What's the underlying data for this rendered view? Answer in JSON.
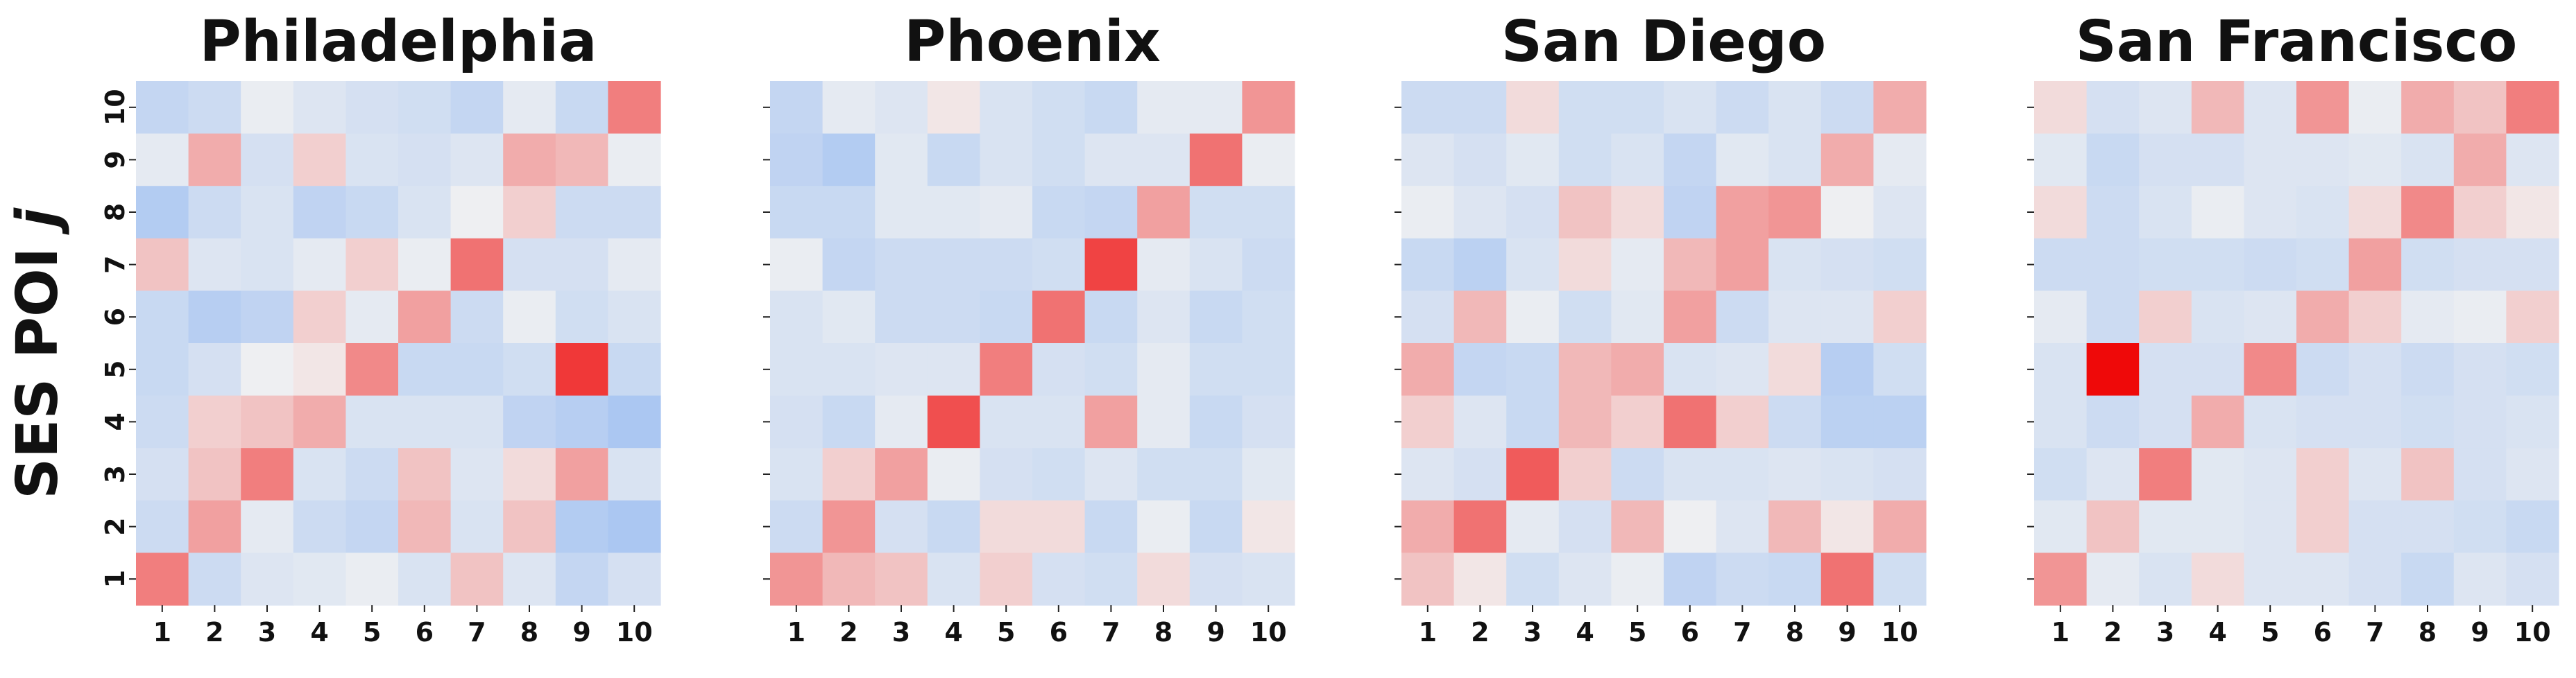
{
  "figure": {
    "ylabel": "SES POI ",
    "ylabel_var": "j"
  },
  "colors": {
    "low": "#9ebff2",
    "mid": "#f2f2f2",
    "high": "#ef0909"
  },
  "chart_data": [
    {
      "type": "heatmap",
      "title": "Philadelphia",
      "x": [
        1,
        2,
        3,
        4,
        5,
        6,
        7,
        8,
        9,
        10
      ],
      "y": [
        1,
        2,
        3,
        4,
        5,
        6,
        7,
        8,
        9,
        10
      ],
      "values_top_to_bottom": [
        [
          -0.55,
          -0.45,
          -0.1,
          -0.25,
          -0.35,
          -0.4,
          -0.55,
          -0.15,
          -0.5,
          0.5
        ],
        [
          -0.15,
          0.3,
          -0.35,
          0.15,
          -0.3,
          -0.35,
          -0.25,
          0.3,
          0.25,
          -0.1
        ],
        [
          -0.75,
          -0.45,
          -0.3,
          -0.6,
          -0.5,
          -0.3,
          -0.05,
          0.15,
          -0.45,
          -0.45
        ],
        [
          0.2,
          -0.25,
          -0.3,
          -0.15,
          0.15,
          -0.1,
          0.55,
          -0.35,
          -0.35,
          -0.15
        ],
        [
          -0.5,
          -0.7,
          -0.6,
          0.15,
          -0.15,
          0.35,
          -0.45,
          -0.1,
          -0.4,
          -0.3
        ],
        [
          -0.5,
          -0.35,
          -0.05,
          0.05,
          0.45,
          -0.5,
          -0.5,
          -0.4,
          0.8,
          -0.5
        ],
        [
          -0.45,
          0.15,
          0.2,
          0.3,
          -0.3,
          -0.3,
          -0.3,
          -0.6,
          -0.7,
          -0.85
        ],
        [
          -0.35,
          0.2,
          0.5,
          -0.3,
          -0.45,
          0.2,
          -0.25,
          0.1,
          0.35,
          -0.3
        ],
        [
          -0.45,
          0.35,
          -0.15,
          -0.45,
          -0.55,
          0.25,
          -0.3,
          0.2,
          -0.75,
          -0.85
        ],
        [
          0.5,
          -0.45,
          -0.25,
          -0.2,
          -0.1,
          -0.3,
          0.2,
          -0.25,
          -0.55,
          -0.35
        ]
      ]
    },
    {
      "type": "heatmap",
      "title": "Phoenix",
      "x": [
        1,
        2,
        3,
        4,
        5,
        6,
        7,
        8,
        9,
        10
      ],
      "y": [
        1,
        2,
        3,
        4,
        5,
        6,
        7,
        8,
        9,
        10
      ],
      "values_top_to_bottom": [
        [
          -0.55,
          -0.15,
          -0.25,
          0.05,
          -0.3,
          -0.4,
          -0.5,
          -0.15,
          -0.15,
          0.4
        ],
        [
          -0.6,
          -0.75,
          -0.2,
          -0.5,
          -0.3,
          -0.4,
          -0.25,
          -0.25,
          0.55,
          -0.1
        ],
        [
          -0.5,
          -0.5,
          -0.2,
          -0.2,
          -0.15,
          -0.5,
          -0.55,
          0.35,
          -0.4,
          -0.4
        ],
        [
          -0.1,
          -0.55,
          -0.45,
          -0.45,
          -0.45,
          -0.4,
          0.75,
          -0.15,
          -0.3,
          -0.45
        ],
        [
          -0.3,
          -0.2,
          -0.45,
          -0.45,
          -0.5,
          0.55,
          -0.5,
          -0.25,
          -0.5,
          -0.4
        ],
        [
          -0.3,
          -0.3,
          -0.25,
          -0.25,
          0.5,
          -0.35,
          -0.4,
          -0.15,
          -0.4,
          -0.4
        ],
        [
          -0.35,
          -0.5,
          -0.15,
          0.7,
          -0.3,
          -0.3,
          0.35,
          -0.15,
          -0.5,
          -0.35
        ],
        [
          -0.3,
          0.15,
          0.35,
          -0.1,
          -0.35,
          -0.4,
          -0.25,
          -0.4,
          -0.4,
          -0.2
        ],
        [
          -0.45,
          0.4,
          -0.35,
          -0.5,
          0.1,
          0.1,
          -0.5,
          -0.1,
          -0.5,
          0.05
        ],
        [
          0.4,
          0.25,
          0.2,
          -0.3,
          0.15,
          -0.35,
          -0.4,
          0.1,
          -0.35,
          -0.3
        ]
      ]
    },
    {
      "type": "heatmap",
      "title": "San Diego",
      "x": [
        1,
        2,
        3,
        4,
        5,
        6,
        7,
        8,
        9,
        10
      ],
      "y": [
        1,
        2,
        3,
        4,
        5,
        6,
        7,
        8,
        9,
        10
      ],
      "values_top_to_bottom": [
        [
          -0.45,
          -0.45,
          0.1,
          -0.4,
          -0.4,
          -0.3,
          -0.45,
          -0.3,
          -0.45,
          0.3
        ],
        [
          -0.25,
          -0.35,
          -0.2,
          -0.4,
          -0.3,
          -0.55,
          -0.2,
          -0.3,
          0.3,
          -0.15
        ],
        [
          -0.1,
          -0.25,
          -0.35,
          0.2,
          0.1,
          -0.6,
          0.35,
          0.4,
          -0.05,
          -0.25
        ],
        [
          -0.5,
          -0.65,
          -0.3,
          0.1,
          -0.15,
          0.25,
          0.35,
          -0.3,
          -0.35,
          -0.4
        ],
        [
          -0.35,
          0.25,
          -0.1,
          -0.4,
          -0.2,
          0.35,
          -0.45,
          -0.25,
          -0.25,
          0.15
        ],
        [
          0.3,
          -0.55,
          -0.5,
          0.25,
          0.3,
          -0.3,
          -0.25,
          0.1,
          -0.7,
          -0.4
        ],
        [
          0.15,
          -0.25,
          -0.5,
          0.25,
          0.15,
          0.55,
          0.15,
          -0.45,
          -0.65,
          -0.65
        ],
        [
          -0.25,
          -0.35,
          0.65,
          0.15,
          -0.45,
          -0.3,
          -0.3,
          -0.25,
          -0.3,
          -0.35
        ],
        [
          0.3,
          0.55,
          -0.15,
          -0.35,
          0.25,
          -0.05,
          -0.25,
          0.25,
          0.05,
          0.3
        ],
        [
          0.2,
          0.05,
          -0.4,
          -0.25,
          -0.1,
          -0.6,
          -0.45,
          -0.5,
          0.55,
          -0.4
        ]
      ]
    },
    {
      "type": "heatmap",
      "title": "San Francisco",
      "x": [
        1,
        2,
        3,
        4,
        5,
        6,
        7,
        8,
        9,
        10
      ],
      "y": [
        1,
        2,
        3,
        4,
        5,
        6,
        7,
        8,
        9,
        10
      ],
      "values_top_to_bottom": [
        [
          0.1,
          -0.35,
          -0.25,
          0.25,
          -0.25,
          0.4,
          -0.1,
          0.3,
          0.2,
          0.5
        ],
        [
          -0.2,
          -0.5,
          -0.35,
          -0.35,
          -0.25,
          -0.25,
          -0.2,
          -0.3,
          0.3,
          -0.25
        ],
        [
          0.1,
          -0.45,
          -0.3,
          -0.1,
          -0.25,
          -0.3,
          0.1,
          0.45,
          0.15,
          0.05
        ],
        [
          -0.45,
          -0.45,
          -0.4,
          -0.4,
          -0.45,
          -0.4,
          0.35,
          -0.4,
          -0.35,
          -0.35
        ],
        [
          -0.15,
          -0.45,
          0.15,
          -0.3,
          -0.25,
          0.3,
          0.15,
          -0.15,
          -0.1,
          0.15
        ],
        [
          -0.3,
          1.0,
          -0.35,
          -0.35,
          0.45,
          -0.45,
          -0.35,
          -0.45,
          -0.35,
          -0.4
        ],
        [
          -0.3,
          -0.45,
          -0.35,
          0.3,
          -0.3,
          -0.35,
          -0.35,
          -0.4,
          -0.35,
          -0.3
        ],
        [
          -0.4,
          -0.25,
          0.5,
          -0.2,
          -0.25,
          0.15,
          -0.25,
          0.2,
          -0.35,
          -0.25
        ],
        [
          -0.2,
          0.2,
          -0.2,
          -0.2,
          -0.25,
          0.15,
          -0.35,
          -0.35,
          -0.4,
          -0.5
        ],
        [
          0.4,
          -0.15,
          -0.3,
          0.1,
          -0.25,
          -0.25,
          -0.35,
          -0.5,
          -0.25,
          -0.35
        ]
      ]
    }
  ]
}
